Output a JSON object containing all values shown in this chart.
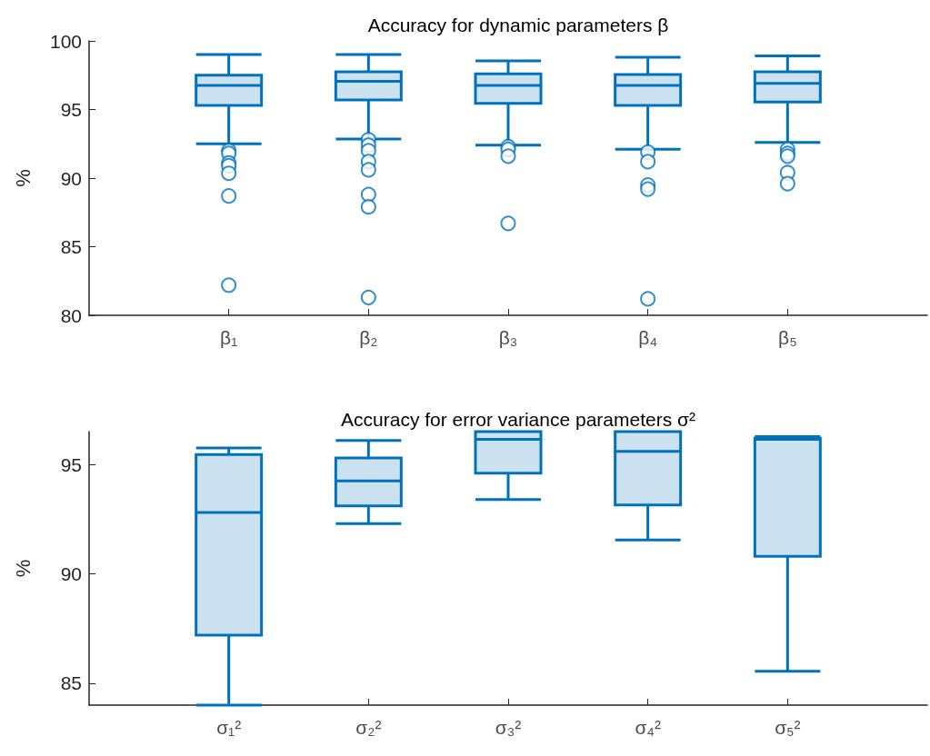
{
  "chart_data": [
    {
      "type": "box",
      "title": "Accuracy for dynamic parameters β",
      "ylabel": "%",
      "categories": [
        "β₁",
        "β₂",
        "β₃",
        "β₄",
        "β₅"
      ],
      "color": "#0072bd",
      "ylim": [
        80,
        100
      ],
      "yticks": [
        80,
        85,
        90,
        95,
        100
      ],
      "boxes": [
        {
          "low": 92.5,
          "q1": 95.3,
          "median": 96.75,
          "q3": 97.5,
          "high": 99.0,
          "outliers": [
            92.0,
            91.8,
            91.1,
            90.9,
            90.35,
            88.7,
            82.2
          ]
        },
        {
          "low": 92.85,
          "q1": 95.7,
          "median": 97.05,
          "q3": 97.75,
          "high": 99.0,
          "outliers": [
            92.8,
            92.4,
            92.0,
            91.2,
            90.6,
            88.8,
            87.9,
            81.3
          ]
        },
        {
          "low": 92.4,
          "q1": 95.45,
          "median": 96.75,
          "q3": 97.6,
          "high": 98.55,
          "outliers": [
            92.3,
            92.1,
            91.6,
            86.7
          ]
        },
        {
          "low": 92.1,
          "q1": 95.3,
          "median": 96.75,
          "q3": 97.55,
          "high": 98.8,
          "outliers": [
            91.9,
            91.2,
            89.5,
            89.2,
            81.2
          ]
        },
        {
          "low": 92.6,
          "q1": 95.55,
          "median": 96.9,
          "q3": 97.75,
          "high": 98.9,
          "outliers": [
            92.1,
            91.8,
            91.6,
            90.4,
            89.6
          ]
        }
      ]
    },
    {
      "type": "box",
      "title": "Accuracy for error variance parameters σ²",
      "ylabel": "%",
      "categories": [
        "σ₁²",
        "σ₂²",
        "σ₃²",
        "σ₄²",
        "σ₅²"
      ],
      "color": "#0072bd",
      "ylim": [
        84,
        96.5
      ],
      "yticks": [
        85,
        90,
        95
      ],
      "boxes": [
        {
          "low": 84,
          "q1": 87.2,
          "median": 92.8,
          "q3": 95.45,
          "high": 95.75
        },
        {
          "low": 92.3,
          "q1": 93.1,
          "median": 94.25,
          "q3": 95.3,
          "high": 96.1
        },
        {
          "low": 93.4,
          "q1": 94.6,
          "median": 96.15,
          "q3": 96.5,
          "high": 96.5
        },
        {
          "low": 91.55,
          "q1": 93.15,
          "median": 95.6,
          "q3": 96.5,
          "high": 96.5
        },
        {
          "low": 85.55,
          "q1": 90.8,
          "median": 96.15,
          "q3": 96.2,
          "high": 96.27
        }
      ]
    }
  ]
}
